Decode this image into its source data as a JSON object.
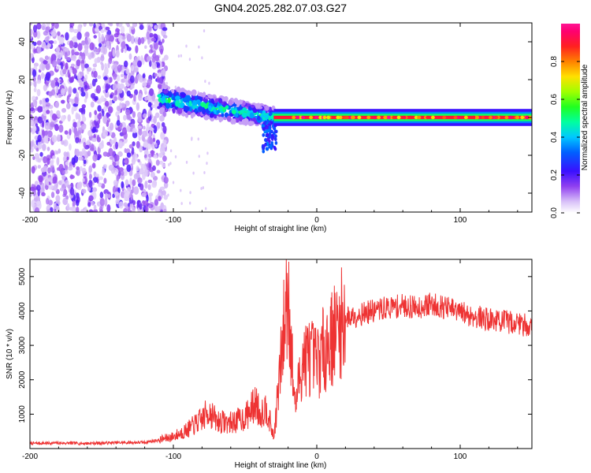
{
  "title": "GN04.2025.282.07.03.G27",
  "chart_data": [
    {
      "type": "heatmap",
      "title": "GN04.2025.282.07.03.G27",
      "xlabel": "Height of straight line (km)",
      "ylabel": "Frequency (Hz)",
      "xlim": [
        -200,
        150
      ],
      "ylim": [
        -50,
        50
      ],
      "x_ticks": [
        -200,
        -100,
        0,
        100
      ],
      "y_ticks": [
        -40,
        -20,
        0,
        20,
        40
      ],
      "colorbar": {
        "label": "Normalized spectral amplitude",
        "range": [
          0,
          1
        ],
        "ticks": [
          0.0,
          0.2,
          0.4,
          0.6,
          0.8
        ],
        "colors": [
          "#ffffff",
          "#c8a8f0",
          "#8a2be2",
          "#3a10ff",
          "#0050ff",
          "#00c8ff",
          "#00ff80",
          "#60ff00",
          "#d0ff00",
          "#ffb000",
          "#ff3000",
          "#ff0060",
          "#ff1493"
        ]
      },
      "regions": [
        {
          "name": "noise",
          "x_range": [
            -200,
            -105
          ],
          "freq_range": [
            -50,
            50
          ],
          "amplitude": 0.1
        },
        {
          "name": "emerging signal",
          "x_range": [
            -110,
            -30
          ],
          "freq_center_start": 10,
          "freq_center_end": 0,
          "amplitude": 0.5
        },
        {
          "name": "stable carrier",
          "x_range": [
            -30,
            150
          ],
          "freq_center": 0,
          "amplitude": 1.0
        }
      ]
    },
    {
      "type": "line",
      "xlabel": "Height of straight line (km)",
      "ylabel": "SNR (10 * v/v)",
      "xlim": [
        -200,
        150
      ],
      "ylim": [
        0,
        5500
      ],
      "x_ticks": [
        -200,
        -100,
        0,
        100
      ],
      "y_ticks": [
        1000,
        2000,
        3000,
        4000,
        5000
      ],
      "series": [
        {
          "name": "SNR",
          "color": "#ee3333",
          "x": [
            -200,
            -180,
            -160,
            -140,
            -120,
            -110,
            -100,
            -90,
            -80,
            -75,
            -70,
            -60,
            -50,
            -42,
            -40,
            -35,
            -30,
            -25,
            -20,
            -18,
            -15,
            -10,
            -5,
            0,
            5,
            10,
            15,
            20,
            25,
            30,
            40,
            50,
            60,
            70,
            80,
            90,
            100,
            110,
            120,
            130,
            140,
            150
          ],
          "values": [
            150,
            160,
            150,
            170,
            180,
            250,
            350,
            550,
            850,
            1100,
            800,
            750,
            900,
            1350,
            1000,
            1200,
            300,
            2500,
            4800,
            3000,
            1200,
            2600,
            2700,
            2500,
            2900,
            3200,
            3500,
            3800,
            3850,
            3900,
            4000,
            4100,
            4150,
            4100,
            4200,
            4100,
            3950,
            3850,
            3750,
            3700,
            3650,
            3550
          ]
        }
      ]
    }
  ]
}
